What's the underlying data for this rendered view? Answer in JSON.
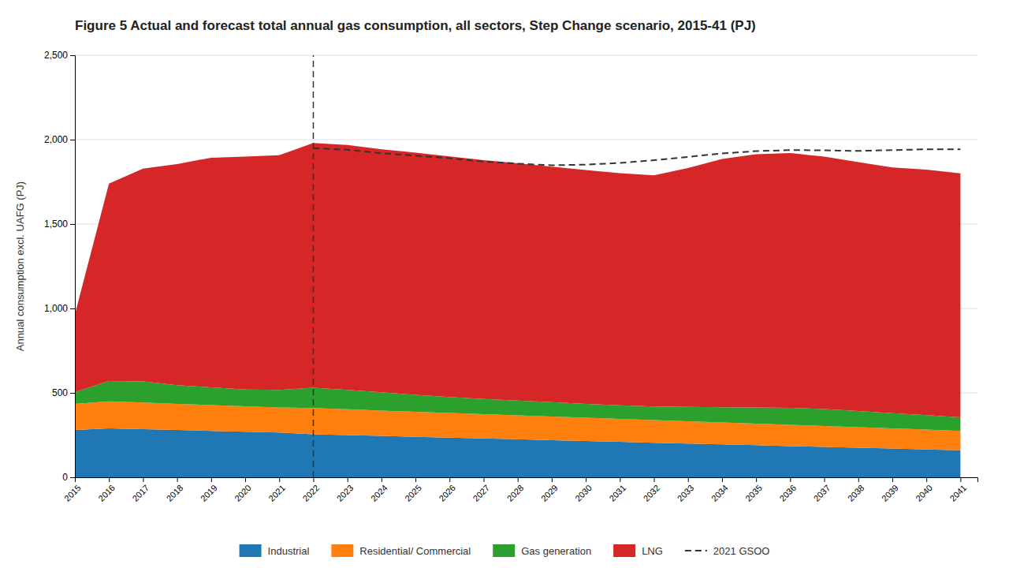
{
  "chart_data": {
    "type": "area",
    "stacked": true,
    "title": "Figure 5 Actual and forecast total annual gas consumption, all sectors, Step Change scenario, 2015-41 (PJ)",
    "ylabel": "Annual consumption excl. UAFG (PJ)",
    "x": [
      2015,
      2016,
      2017,
      2018,
      2019,
      2020,
      2021,
      2022,
      2023,
      2024,
      2025,
      2026,
      2027,
      2028,
      2029,
      2030,
      2031,
      2032,
      2033,
      2034,
      2035,
      2036,
      2037,
      2038,
      2039,
      2040,
      2041
    ],
    "series": [
      {
        "name": "Industrial",
        "type": "area",
        "values": [
          280,
          290,
          285,
          280,
          275,
          270,
          265,
          255,
          250,
          245,
          240,
          235,
          230,
          225,
          220,
          215,
          210,
          205,
          200,
          195,
          190,
          185,
          180,
          175,
          170,
          165,
          160
        ]
      },
      {
        "name": "Residential/ Commercial",
        "type": "area",
        "values": [
          155,
          160,
          158,
          155,
          153,
          150,
          148,
          155,
          153,
          150,
          148,
          146,
          144,
          142,
          140,
          138,
          136,
          134,
          132,
          130,
          128,
          126,
          124,
          122,
          120,
          118,
          115
        ]
      },
      {
        "name": "Gas generation",
        "type": "area",
        "values": [
          70,
          120,
          125,
          110,
          105,
          100,
          105,
          120,
          115,
          108,
          100,
          95,
          90,
          88,
          85,
          82,
          80,
          80,
          85,
          90,
          95,
          100,
          100,
          95,
          90,
          85,
          80
        ]
      },
      {
        "name": "LNG",
        "type": "area",
        "values": [
          460,
          1170,
          1260,
          1310,
          1360,
          1380,
          1390,
          1450,
          1450,
          1440,
          1435,
          1425,
          1415,
          1405,
          1395,
          1385,
          1375,
          1370,
          1415,
          1470,
          1500,
          1510,
          1495,
          1475,
          1455,
          1455,
          1445
        ]
      },
      {
        "name": "2021 GSOO",
        "type": "line",
        "line_style": "dashed",
        "values": [
          null,
          null,
          null,
          null,
          null,
          null,
          null,
          1950,
          1940,
          1920,
          1905,
          1890,
          1870,
          1858,
          1848,
          1852,
          1862,
          1878,
          1898,
          1918,
          1932,
          1938,
          1937,
          1933,
          1938,
          1943,
          1943
        ]
      }
    ],
    "vline": 2022,
    "xlim": [
      2015,
      2041.5
    ],
    "xticks": [
      2015,
      2016,
      2017,
      2018,
      2019,
      2020,
      2021,
      2022,
      2023,
      2024,
      2025,
      2026,
      2027,
      2028,
      2029,
      2030,
      2031,
      2032,
      2033,
      2034,
      2035,
      2036,
      2037,
      2038,
      2039,
      2040,
      2041
    ],
    "ylim": [
      0,
      2500
    ],
    "yticks": [
      0,
      500,
      {
        "value": 1000,
        "label": "1,000"
      },
      {
        "value": 1500,
        "label": "1,500"
      },
      {
        "value": 2000,
        "label": "2,000"
      },
      {
        "value": 2500,
        "label": "2,500"
      }
    ],
    "grid": "y",
    "legend": "bottom"
  }
}
